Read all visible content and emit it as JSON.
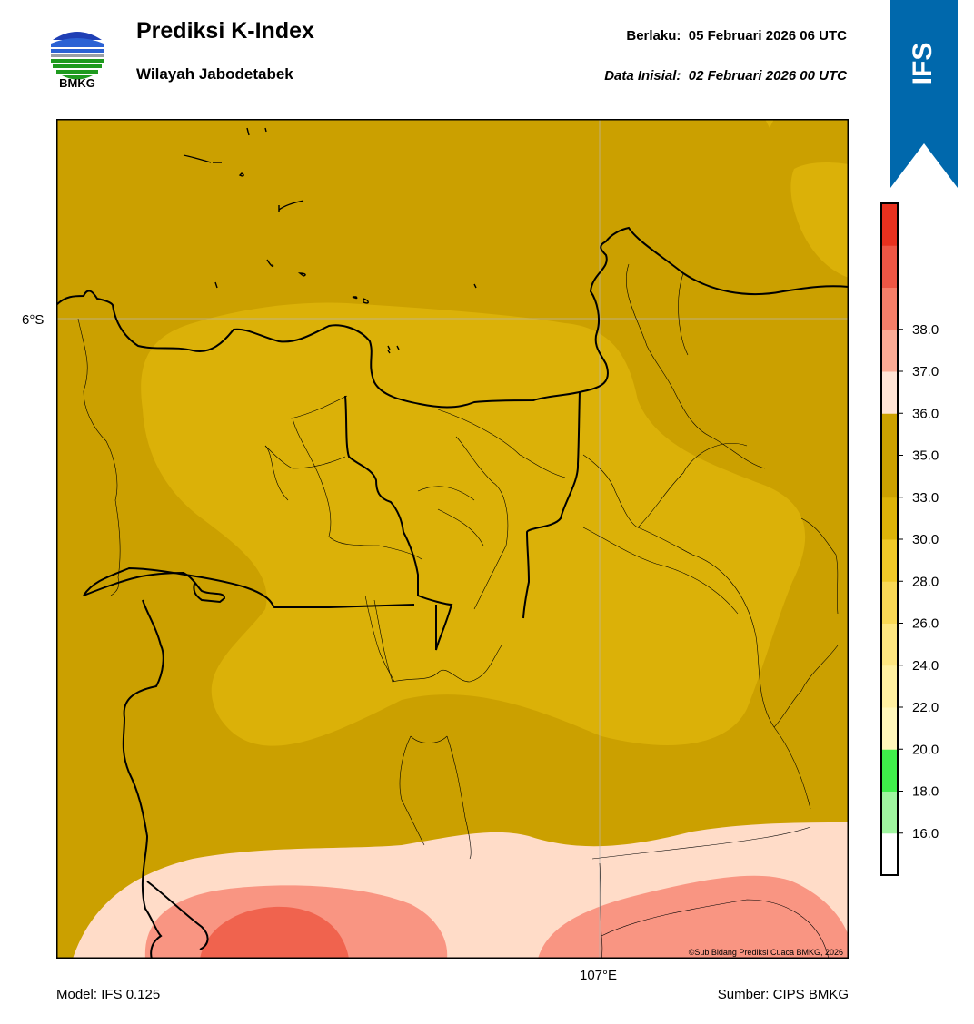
{
  "header": {
    "logo_text": "BMKG",
    "title": "Prediksi K-Index",
    "subtitle": "Wilayah Jabodetabek",
    "valid_label": "Berlaku:",
    "valid_value": "05 Februari 2026 06 UTC",
    "init_label": "Data Inisial:",
    "init_value": "02 Februari 2026 00 UTC"
  },
  "ribbon": {
    "label": "IFS",
    "color": "#0068ac"
  },
  "map": {
    "lat_label": "6°S",
    "lon_label": "107°E",
    "credit": "©Sub Bidang Prediksi Cuaca BMKG, 2026",
    "colors": {
      "dark_band": "#cba000",
      "mid_band": "#dbb108",
      "light_pink": "#ffdcc8",
      "salmon": "#f99582",
      "red": "#f0634e"
    }
  },
  "colorbar": {
    "ticks": [
      "16.0",
      "18.0",
      "20.0",
      "22.0",
      "24.0",
      "26.0",
      "28.0",
      "30.0",
      "33.0",
      "35.0",
      "36.0",
      "37.0",
      "38.0"
    ],
    "segments": [
      "#ffffff",
      "#9ff59f",
      "#3fee4a",
      "#fff7ba",
      "#fff0a0",
      "#fde680",
      "#f8d855",
      "#f0c928",
      "#dcb308",
      "#cba000",
      "#cba000",
      "#ffe4d6",
      "#fbaa94",
      "#f67e68",
      "#ee5644",
      "#e8311e"
    ]
  },
  "footer": {
    "model": "Model: IFS 0.125",
    "source": "Sumber: CIPS BMKG"
  }
}
